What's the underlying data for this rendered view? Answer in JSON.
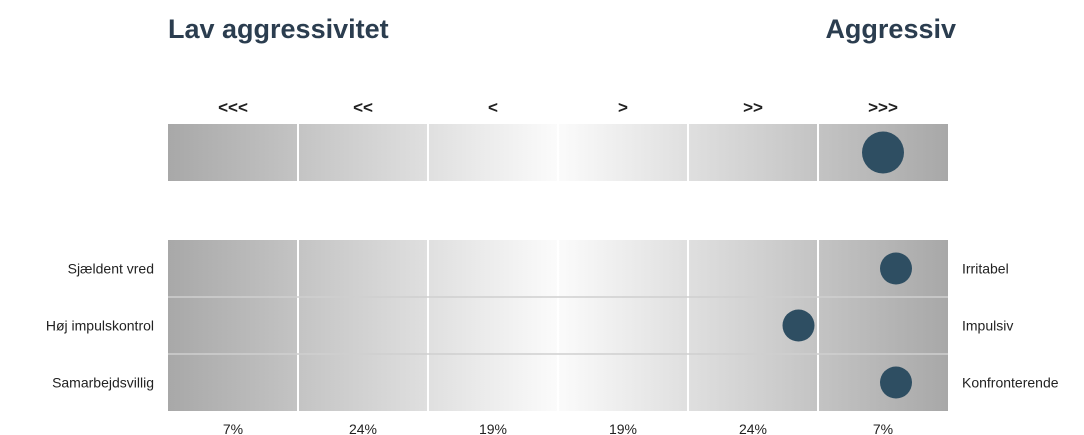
{
  "header": {
    "left_title": "Lav aggressivitet",
    "right_title": "Aggressiv"
  },
  "chart_data": {
    "type": "scatter",
    "categories": [
      "<<<",
      "<<",
      "<",
      ">",
      ">>",
      ">>>"
    ],
    "column_percentages": [
      "7%",
      "24%",
      "19%",
      "19%",
      "24%",
      "7%"
    ],
    "overall": {
      "position": 5.5
    },
    "rows": [
      {
        "left_label": "Sjældent vred",
        "right_label": "Irritabel",
        "position": 5.6
      },
      {
        "left_label": "Høj impulskontrol",
        "right_label": "Impulsiv",
        "position": 4.85
      },
      {
        "left_label": "Samarbejdsvillig",
        "right_label": "Konfronterende",
        "position": 5.6
      }
    ],
    "xlim": [
      0,
      6
    ],
    "colors": {
      "dot": "#2e4e62",
      "title": "#2b3d4f"
    }
  }
}
